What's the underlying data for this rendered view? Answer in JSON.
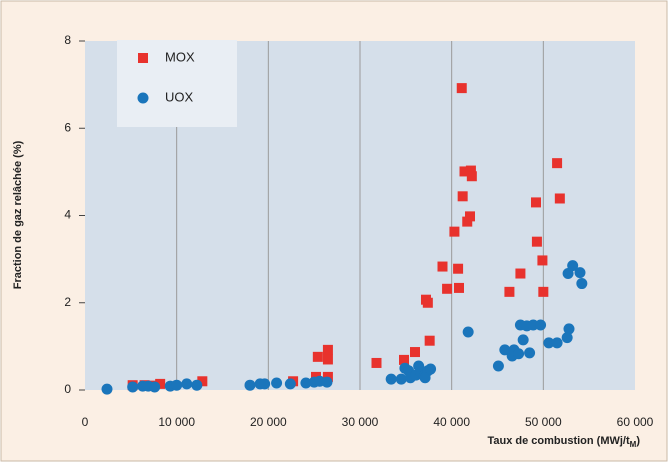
{
  "chart_data": {
    "type": "scatter",
    "ylabel": "Fraction de gaz relâchée (%)",
    "xlabel": {
      "text": "Taux de combustion (MWj/t",
      "sub": "M",
      "end": ")"
    },
    "xlim": [
      0,
      60000
    ],
    "ylim": [
      0,
      8
    ],
    "xticks": [
      0,
      {
        "value": 10000,
        "label": "10 000"
      },
      {
        "value": 20000,
        "label": "20 000"
      },
      {
        "value": 30000,
        "label": "30 000"
      },
      {
        "value": 40000,
        "label": "40 000"
      },
      {
        "value": 50000,
        "label": "50 000"
      },
      {
        "value": 60000,
        "label": "60 000"
      }
    ],
    "yticks": [
      0,
      2,
      4,
      6,
      8
    ],
    "grid": true,
    "series": [
      {
        "name": "MOX",
        "color": "#e8322d",
        "marker": "square",
        "x": [
          5200,
          6500,
          7300,
          8200,
          12800,
          22700,
          25200,
          25400,
          26500,
          26500,
          26500,
          31800,
          34800,
          36000,
          37200,
          37400,
          37600,
          39000,
          39500,
          40300,
          40700,
          40800,
          41100,
          41200,
          41400,
          41700,
          42100,
          42000,
          42200,
          46300,
          47500,
          49200,
          49300,
          49900,
          50000,
          51500,
          51800
        ],
        "values": [
          0.11,
          0.11,
          0.1,
          0.14,
          0.2,
          0.2,
          0.3,
          0.76,
          0.92,
          0.7,
          0.3,
          0.62,
          0.69,
          0.87,
          2.07,
          2.0,
          1.13,
          2.83,
          2.32,
          3.63,
          2.78,
          2.34,
          6.92,
          4.44,
          5.01,
          3.86,
          5.03,
          3.98,
          4.9,
          2.25,
          2.67,
          4.3,
          3.4,
          2.97,
          2.25,
          5.2,
          4.39
        ]
      },
      {
        "name": "UOX",
        "color": "#1a75bb",
        "marker": "circle",
        "x": [
          2400,
          5200,
          6300,
          6900,
          7600,
          9300,
          10000,
          11100,
          12200,
          18000,
          19100,
          19600,
          20900,
          22400,
          24100,
          25000,
          25600,
          26400,
          33400,
          34500,
          34900,
          35300,
          35500,
          36100,
          36600,
          37000,
          36400,
          37400,
          37100,
          37700,
          41800,
          45100,
          45800,
          46600,
          46800,
          47300,
          47800,
          47500,
          48200,
          48500,
          48900,
          49700,
          50600,
          51500,
          52600,
          52800,
          52700,
          53200,
          54000,
          54200
        ],
        "values": [
          0.02,
          0.07,
          0.09,
          0.09,
          0.07,
          0.09,
          0.11,
          0.14,
          0.11,
          0.11,
          0.14,
          0.14,
          0.16,
          0.14,
          0.16,
          0.18,
          0.2,
          0.18,
          0.25,
          0.25,
          0.5,
          0.44,
          0.28,
          0.34,
          0.41,
          0.32,
          0.55,
          0.44,
          0.28,
          0.48,
          1.33,
          0.55,
          0.92,
          0.78,
          0.92,
          0.83,
          1.15,
          1.49,
          1.47,
          0.85,
          1.49,
          1.49,
          1.08,
          1.08,
          1.2,
          1.4,
          2.67,
          2.85,
          2.69,
          2.44
        ]
      }
    ]
  }
}
